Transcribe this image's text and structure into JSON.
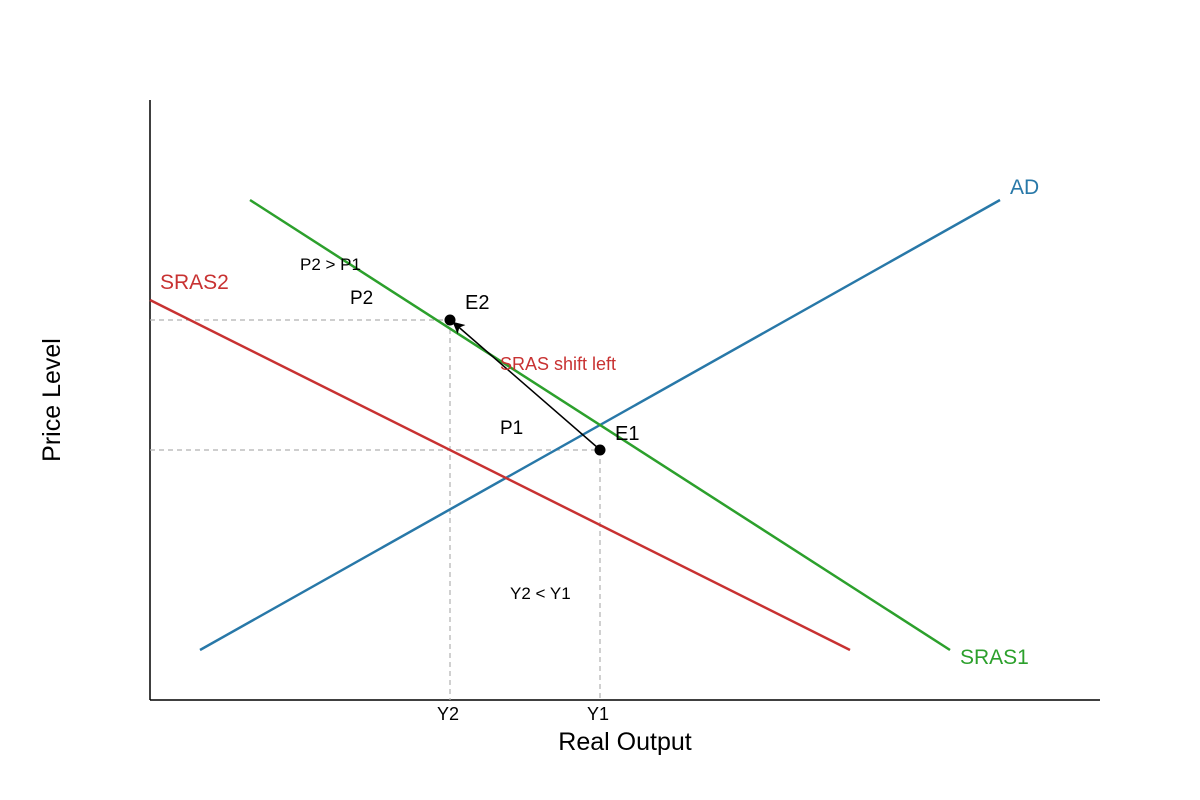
{
  "axes": {
    "x_label": "Real Output",
    "y_label": "Price Level"
  },
  "ticks": {
    "y1": "Y1",
    "y2": "Y2"
  },
  "price_labels": {
    "p1": "P1",
    "p2": "P2"
  },
  "curves": {
    "ad": {
      "label": "AD",
      "color": "#2878a8"
    },
    "sras1": {
      "label": "SRAS1",
      "color": "#2ca02c"
    },
    "sras2": {
      "label": "SRAS2",
      "color": "#c83232"
    }
  },
  "points": {
    "e1": "E1",
    "e2": "E2"
  },
  "annotations": {
    "shift": "SRAS shift left",
    "price_compare": "P2 > P1",
    "output_compare": "Y2 < Y1"
  },
  "colors": {
    "axis": "#000000",
    "guide": "#b0b0b0",
    "arrow": "#000000",
    "annotation_red": "#c83232"
  }
}
